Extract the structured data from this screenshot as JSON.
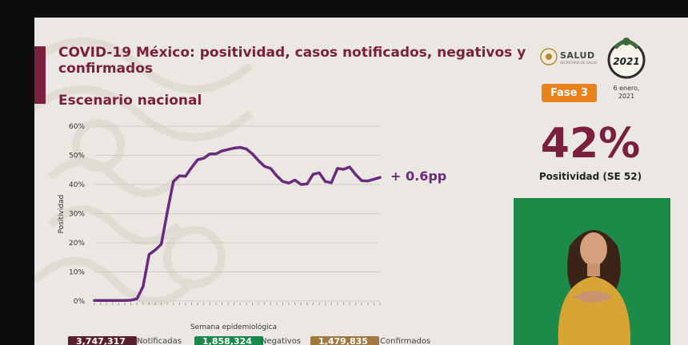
{
  "slide": {
    "title": "COVID-19 México: positividad, casos notificados, negativos y confirmados",
    "subtitle": "Escenario nacional",
    "colors": {
      "accent": "#7a1f3d",
      "line": "#6a2a7e",
      "phase": "#e8821d",
      "background": "#ebe8e3",
      "green": "#1a8a4a",
      "brown": "#a07840"
    }
  },
  "logos": {
    "salud": "SALUD",
    "ministry": "SECRETARÍA DE SALUD",
    "emblem_year": "2021",
    "emblem_icon": "eagle-emblem-icon"
  },
  "badge": {
    "phase": "Fase 3",
    "date": "6 enero,\n2021"
  },
  "stat": {
    "value": "42%",
    "caption": "Positividad (SE 52)"
  },
  "change_label": "+ 0.6pp",
  "chart_data": {
    "type": "line",
    "title": "",
    "xlabel": "Semana epidemiológica",
    "ylabel": "Positividad",
    "ylim": [
      0,
      60
    ],
    "y_ticks": [
      "0%",
      "10%",
      "20%",
      "30%",
      "40%",
      "50%",
      "60%"
    ],
    "grid": true,
    "series": [
      {
        "values": [
          0.2,
          0.2,
          0.2,
          0.2,
          0.2,
          0.2,
          0.3,
          0.8,
          5,
          16,
          17.5,
          19.5,
          30.5,
          41,
          43,
          42.8,
          45.8,
          48.5,
          49,
          50.5,
          50.5,
          51.5,
          52,
          52.5,
          52.7,
          52.2,
          50.5,
          48.2,
          46.2,
          45.5,
          43,
          41,
          40.5,
          41.5,
          40,
          40.2,
          43.5,
          44,
          41,
          40.6,
          45.5,
          45.2,
          46,
          43.4,
          41.3,
          41.2,
          41.8,
          42.4
        ]
      }
    ]
  },
  "footer": [
    {
      "value": "3,747,317",
      "label": "Notificadas"
    },
    {
      "value": "1,858,324",
      "label": "Negativos"
    },
    {
      "value": "1,479,835",
      "label": "Confirmados"
    }
  ]
}
